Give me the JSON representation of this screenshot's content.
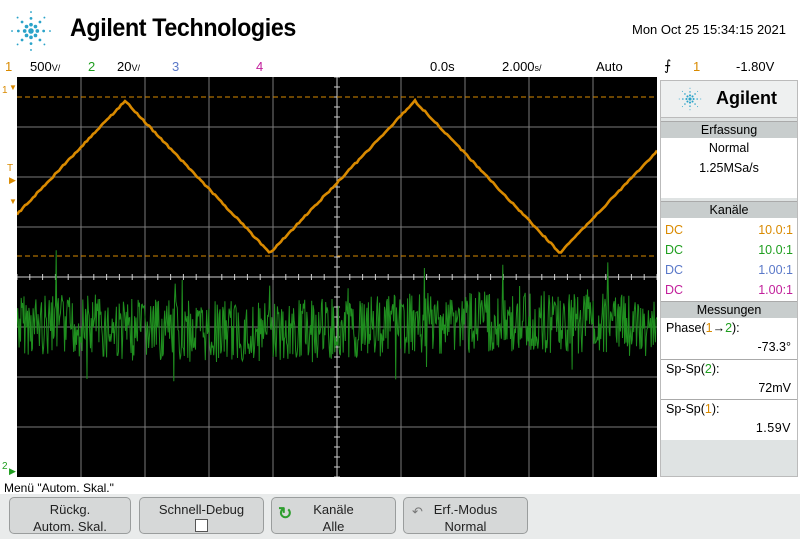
{
  "header": {
    "brand": "Agilent Technologies",
    "datetime": "Mon Oct 25 15:34:15 2021",
    "logo_icon": "agilent-spark-icon"
  },
  "status_bar": {
    "ch1_num": "1",
    "ch1_scale": "500",
    "ch1_unit": "V/",
    "ch2_num": "2",
    "ch2_scale": "20",
    "ch2_unit": "V/",
    "ch3_num": "3",
    "ch4_num": "4",
    "time_delay": "0.0s",
    "time_scale": "2.000",
    "time_unit": "s/",
    "trigger_mode": "Auto",
    "trigger_slope_icon": "rising-edge-icon",
    "trigger_source": "1",
    "trigger_level": "-1.80V"
  },
  "markers": {
    "ch1": "1",
    "trigger": "T",
    "ch2": "2"
  },
  "panel": {
    "brand": "Agilent",
    "acquisition": {
      "title": "Erfassung",
      "mode": "Normal",
      "rate": "1.25MSa/s"
    },
    "channels": {
      "title": "Kanäle",
      "rows": [
        {
          "coupling": "DC",
          "probe": "10.0:1"
        },
        {
          "coupling": "DC",
          "probe": "10.0:1"
        },
        {
          "coupling": "DC",
          "probe": "1.00:1"
        },
        {
          "coupling": "DC",
          "probe": "1.00:1"
        }
      ]
    },
    "measurements": {
      "title": "Messungen",
      "items": [
        {
          "label_prefix": "Phase(",
          "src_a": "1",
          "arrow": "→",
          "src_b": "2",
          "label_suffix": "):",
          "value": "-73.3°"
        },
        {
          "label_prefix": "Sp-Sp(",
          "src": "2",
          "label_suffix": "):",
          "value": "72mV"
        },
        {
          "label_prefix": "Sp-Sp(",
          "src": "1",
          "label_suffix": "):",
          "value": "1.59V"
        }
      ]
    }
  },
  "menu": {
    "label": "Menü \"Autom. Skal.\"",
    "softkeys": [
      {
        "line1": "Rückg.",
        "line2": "Autom. Skal."
      },
      {
        "line1": "Schnell-Debug",
        "line2": ""
      },
      {
        "line1": "Kanäle",
        "line2": "Alle",
        "icon": "rotary-knob-icon"
      },
      {
        "line1": "Erf.-Modus",
        "line2": "Normal",
        "icon": "undo-arrow-icon"
      }
    ]
  },
  "colors": {
    "ch1": "#d98a00",
    "ch2": "#1f9e1f",
    "ch3": "#5a78c8",
    "ch4": "#c21f9b",
    "grid": "#b0b0b0"
  }
}
